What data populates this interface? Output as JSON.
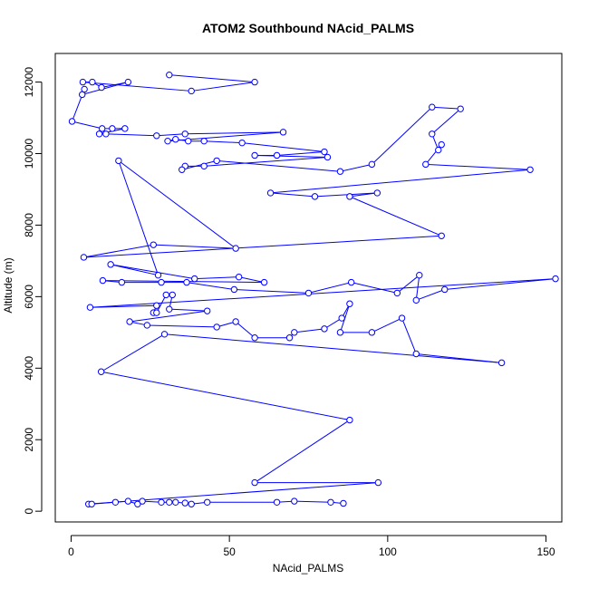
{
  "chart_data": {
    "type": "line",
    "title": "ATOM2 Southbound NAcid_PALMS",
    "xlabel": "NAcid_PALMS",
    "ylabel": "Altitude (m)",
    "xlim": [
      -5,
      155
    ],
    "ylim": [
      -300,
      12800
    ],
    "x_ticks": [
      0,
      50,
      100,
      150
    ],
    "y_ticks": [
      0,
      2000,
      4000,
      6000,
      8000,
      10000,
      12000
    ],
    "grid": false,
    "legend": "none",
    "colors": {
      "series": "#0000ff",
      "axis": "#000000",
      "background": "#ffffff"
    },
    "marker": "open-circle",
    "series": [
      {
        "points": [
          [
            31,
            12200
          ],
          [
            58,
            12000
          ],
          [
            38,
            11750
          ],
          [
            3.7,
            12000
          ],
          [
            6.7,
            12000
          ],
          [
            9.6,
            11850
          ],
          [
            18,
            12000
          ],
          [
            3.5,
            11650
          ],
          [
            4.2,
            11800
          ],
          [
            0.3,
            10900
          ],
          [
            9.8,
            10700
          ],
          [
            13,
            10700
          ],
          [
            17,
            10700
          ],
          [
            8.9,
            10550
          ],
          [
            11,
            10550
          ],
          [
            27,
            10500
          ],
          [
            36,
            10550
          ],
          [
            67,
            10600
          ],
          [
            30.5,
            10350
          ],
          [
            33,
            10400
          ],
          [
            37,
            10350
          ],
          [
            42,
            10350
          ],
          [
            54,
            10300
          ],
          [
            80,
            10050
          ],
          [
            65,
            9950
          ],
          [
            58,
            9950
          ],
          [
            81,
            9900
          ],
          [
            42,
            9650
          ],
          [
            36,
            9650
          ],
          [
            35,
            9550
          ],
          [
            46,
            9800
          ],
          [
            85,
            9500
          ],
          [
            95,
            9700
          ],
          [
            114,
            11300
          ],
          [
            123,
            11250
          ],
          [
            114,
            10550
          ],
          [
            116,
            10100
          ],
          [
            117,
            10250
          ],
          [
            112,
            9700
          ],
          [
            145,
            9550
          ],
          [
            63,
            8900
          ],
          [
            77,
            8800
          ],
          [
            96.7,
            8900
          ],
          [
            88,
            8800
          ],
          [
            117,
            7700
          ],
          [
            4,
            7100
          ],
          [
            26,
            7450
          ],
          [
            52,
            7350
          ],
          [
            15,
            9800
          ],
          [
            27.5,
            6600
          ],
          [
            12.5,
            6900
          ],
          [
            39,
            6500
          ],
          [
            53,
            6550
          ],
          [
            61,
            6400
          ],
          [
            10,
            6450
          ],
          [
            16,
            6400
          ],
          [
            28.5,
            6400
          ],
          [
            36.5,
            6400
          ],
          [
            51.5,
            6200
          ],
          [
            75,
            6100
          ],
          [
            88.5,
            6400
          ],
          [
            103,
            6100
          ],
          [
            110,
            6600
          ],
          [
            109,
            5900
          ],
          [
            118,
            6200
          ],
          [
            153,
            6500
          ],
          [
            6,
            5700
          ],
          [
            27,
            5750
          ],
          [
            26,
            5550
          ],
          [
            27,
            5550
          ],
          [
            30,
            6050
          ],
          [
            32,
            6050
          ],
          [
            31,
            5650
          ],
          [
            43,
            5600
          ],
          [
            18.5,
            5300
          ],
          [
            24,
            5200
          ],
          [
            46,
            5150
          ],
          [
            52,
            5300
          ],
          [
            58,
            4850
          ],
          [
            69,
            4850
          ],
          [
            70.5,
            5000
          ],
          [
            80,
            5100
          ],
          [
            85.5,
            5400
          ],
          [
            88,
            5800
          ],
          [
            85,
            5000
          ],
          [
            95,
            5000
          ],
          [
            104.5,
            5400
          ],
          [
            109,
            4400
          ],
          [
            136,
            4150
          ],
          [
            29.5,
            4950
          ],
          [
            9.5,
            3900
          ],
          [
            88,
            2550
          ],
          [
            58,
            800
          ],
          [
            97,
            800
          ],
          [
            5.5,
            200
          ],
          [
            6.5,
            200
          ],
          [
            14,
            250
          ],
          [
            18,
            280
          ],
          [
            21,
            200
          ],
          [
            22.5,
            280
          ],
          [
            28.5,
            250
          ],
          [
            31,
            250
          ],
          [
            33,
            250
          ],
          [
            36,
            230
          ],
          [
            38,
            200
          ],
          [
            43,
            250
          ],
          [
            65,
            250
          ],
          [
            70.5,
            280
          ],
          [
            82,
            250
          ],
          [
            86,
            220
          ]
        ]
      }
    ]
  }
}
